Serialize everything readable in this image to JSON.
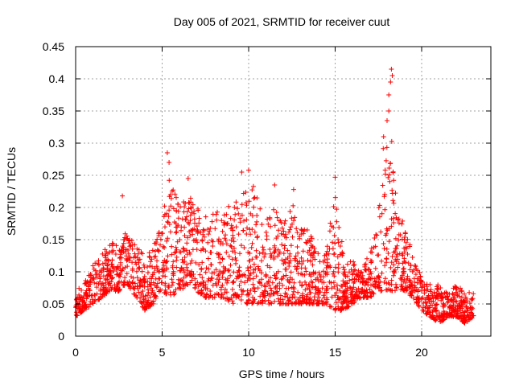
{
  "chart_data": {
    "type": "scatter",
    "title": "Day 005 of 2021, SRMTID for receiver cuut",
    "xlabel": "GPS time / hours",
    "ylabel": "SRMTID / TECUs",
    "xlim": [
      0,
      24
    ],
    "ylim": [
      0,
      0.45
    ],
    "xticks": [
      0,
      5,
      10,
      15,
      20
    ],
    "yticks": [
      0,
      0.05,
      0.1,
      0.15,
      0.2,
      0.25,
      0.3,
      0.35,
      0.4,
      0.45
    ],
    "xtick_labels": [
      "0",
      "5",
      "10",
      "15",
      "20"
    ],
    "ytick_labels": [
      "0",
      "0.05",
      "0.1",
      "0.15",
      "0.2",
      "0.25",
      "0.3",
      "0.35",
      "0.4",
      "0.45"
    ],
    "grid": true,
    "marker": "+",
    "color": "#ff0000",
    "envelope": {
      "hours": [
        0,
        0.5,
        1,
        1.5,
        2,
        2.5,
        3,
        3.5,
        4,
        4.5,
        5,
        5.5,
        6,
        6.5,
        7,
        7.5,
        8,
        8.5,
        9,
        9.5,
        10,
        10.5,
        11,
        11.5,
        12,
        12.5,
        13,
        13.5,
        14,
        14.5,
        15,
        15.5,
        16,
        16.5,
        17,
        17.5,
        18,
        18.5,
        19,
        19.5,
        20,
        20.5,
        21,
        21.5,
        22,
        22.5,
        23
      ],
      "low": [
        0.03,
        0.04,
        0.05,
        0.06,
        0.07,
        0.07,
        0.08,
        0.06,
        0.04,
        0.05,
        0.07,
        0.06,
        0.07,
        0.08,
        0.07,
        0.06,
        0.06,
        0.06,
        0.05,
        0.05,
        0.05,
        0.05,
        0.05,
        0.05,
        0.05,
        0.05,
        0.05,
        0.05,
        0.05,
        0.05,
        0.04,
        0.04,
        0.05,
        0.06,
        0.06,
        0.07,
        0.07,
        0.07,
        0.07,
        0.06,
        0.04,
        0.03,
        0.02,
        0.03,
        0.03,
        0.02,
        0.03
      ],
      "high": [
        0.08,
        0.09,
        0.11,
        0.13,
        0.15,
        0.14,
        0.17,
        0.15,
        0.12,
        0.14,
        0.18,
        0.27,
        0.2,
        0.22,
        0.21,
        0.19,
        0.2,
        0.19,
        0.22,
        0.21,
        0.25,
        0.22,
        0.19,
        0.2,
        0.17,
        0.21,
        0.17,
        0.17,
        0.13,
        0.13,
        0.24,
        0.12,
        0.12,
        0.1,
        0.13,
        0.19,
        0.4,
        0.22,
        0.17,
        0.13,
        0.09,
        0.08,
        0.08,
        0.07,
        0.08,
        0.07,
        0.07
      ]
    },
    "peaks": [
      {
        "x": 2.7,
        "y": 0.218
      },
      {
        "x": 5.3,
        "y": 0.285
      },
      {
        "x": 5.4,
        "y": 0.27
      },
      {
        "x": 6.5,
        "y": 0.245
      },
      {
        "x": 9.6,
        "y": 0.255
      },
      {
        "x": 10.0,
        "y": 0.258
      },
      {
        "x": 11.5,
        "y": 0.235
      },
      {
        "x": 12.6,
        "y": 0.228
      },
      {
        "x": 15.0,
        "y": 0.247
      },
      {
        "x": 17.8,
        "y": 0.31
      },
      {
        "x": 18.0,
        "y": 0.335
      },
      {
        "x": 18.1,
        "y": 0.35
      },
      {
        "x": 18.2,
        "y": 0.395
      },
      {
        "x": 18.25,
        "y": 0.415
      },
      {
        "x": 18.3,
        "y": 0.405
      },
      {
        "x": 18.1,
        "y": 0.375
      }
    ]
  }
}
